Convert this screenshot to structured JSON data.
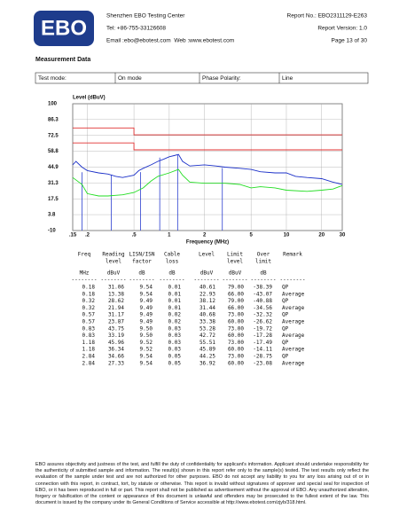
{
  "header": {
    "logo": "EBO",
    "company": "Shenzhen EBO Testing Center",
    "tel": "Tel: +86-755-33126608",
    "contact": "Email :ebo@ebotest.com  Web :www.ebotest.com",
    "report_no": "Report No.: EBO2311129-E263",
    "version": "Report Version: 1.0",
    "page": "Page 13 of 30"
  },
  "section_title": "Measurement Data",
  "mode_table": {
    "cells": [
      "Test mode:",
      "On mode",
      "Phase Polarity:",
      "Line"
    ]
  },
  "chart": {
    "type": "line",
    "ylabel": "Level (dBuV)",
    "xlabel": "Frequency (MHz)",
    "xscale": "log",
    "grid": true,
    "xlim": [
      0.15,
      30
    ],
    "ylim": [
      -10,
      100
    ],
    "xticks": [
      {
        "value": 0.15,
        "label": ".15"
      },
      {
        "value": 0.2,
        "label": ".2"
      },
      {
        "value": 0.5,
        "label": ".5"
      },
      1,
      2,
      5,
      10,
      20,
      30
    ],
    "yticks": [
      -10,
      3.8,
      17.5,
      31.3,
      44.9,
      58.8,
      72.5,
      86.3,
      100
    ],
    "marker_color": "#2b3fd0",
    "series": [
      {
        "color": "#e03030",
        "x": [
          0.15,
          0.5,
          0.5,
          30
        ],
        "values": [
          79,
          79,
          73,
          73
        ]
      },
      {
        "color": "#e03030",
        "x": [
          0.15,
          0.5,
          0.5,
          30
        ],
        "values": [
          66,
          66,
          60,
          60
        ]
      },
      {
        "color": "#1a2fc8",
        "x": [
          0.15,
          0.16,
          0.18,
          0.2,
          0.25,
          0.3,
          0.35,
          0.4,
          0.5,
          0.55,
          0.6,
          0.7,
          0.8,
          0.9,
          1.0,
          1.1,
          1.2,
          1.3,
          1.5,
          2,
          2.5,
          3,
          4,
          5,
          6,
          8,
          10,
          12,
          15,
          20,
          25,
          30
        ],
        "values": [
          47,
          50,
          45,
          42,
          40,
          39,
          37,
          36,
          38,
          42,
          44,
          47,
          50,
          52,
          54,
          55,
          56,
          50,
          46,
          47,
          46,
          45,
          44,
          43,
          41,
          40,
          40,
          37,
          36,
          35,
          32,
          30
        ]
      },
      {
        "color": "#22dd22",
        "x": [
          0.15,
          0.18,
          0.2,
          0.25,
          0.3,
          0.4,
          0.5,
          0.6,
          0.7,
          0.8,
          1.0,
          1.2,
          1.3,
          1.5,
          2,
          3,
          4,
          5,
          6,
          8,
          10,
          15,
          20,
          25,
          30
        ],
        "values": [
          36,
          30,
          22,
          20,
          20,
          21,
          23,
          27,
          33,
          37,
          40,
          43,
          38,
          32,
          31,
          31,
          30,
          27,
          28,
          27,
          25,
          24,
          25,
          26,
          29
        ]
      }
    ]
  },
  "results": {
    "columns": [
      {
        "title": "Freq",
        "unit": "MHz"
      },
      {
        "title": "Reading",
        "title2": "level",
        "unit": "dBuV"
      },
      {
        "title": "LISN/ISN",
        "title2": "factor",
        "unit": "dB"
      },
      {
        "title": "Cable",
        "title2": "loss",
        "unit": "dB"
      },
      {
        "title": "Level",
        "unit": "dBuV"
      },
      {
        "title": "Limit",
        "title2": "level",
        "unit": "dBuV"
      },
      {
        "title": "Over",
        "title2": "limit",
        "unit": "dB"
      },
      {
        "title": "Remark"
      }
    ],
    "rule": "--------",
    "rows": [
      [
        "0.18",
        "31.06",
        "9.54",
        "0.01",
        "40.61",
        "79.00",
        "-38.39",
        "QP"
      ],
      [
        "0.18",
        "13.38",
        "9.54",
        "0.01",
        "22.93",
        "66.00",
        "-43.07",
        "Average"
      ],
      [
        "0.32",
        "28.62",
        "9.49",
        "0.01",
        "38.12",
        "79.00",
        "-40.88",
        "QP"
      ],
      [
        "0.32",
        "21.94",
        "9.49",
        "0.01",
        "31.44",
        "66.00",
        "-34.56",
        "Average"
      ],
      [
        "0.57",
        "31.17",
        "9.49",
        "0.02",
        "40.68",
        "73.00",
        "-32.32",
        "QP"
      ],
      [
        "0.57",
        "23.87",
        "9.49",
        "0.02",
        "33.38",
        "60.00",
        "-26.62",
        "Average"
      ],
      [
        "0.83",
        "43.75",
        "9.50",
        "0.03",
        "53.28",
        "73.00",
        "-19.72",
        "QP"
      ],
      [
        "0.83",
        "33.19",
        "9.50",
        "0.03",
        "42.72",
        "60.00",
        "-17.28",
        "Average"
      ],
      [
        "1.18",
        "45.96",
        "9.52",
        "0.03",
        "55.51",
        "73.00",
        "-17.49",
        "QP"
      ],
      [
        "1.18",
        "36.34",
        "9.52",
        "0.03",
        "45.89",
        "60.00",
        "-14.11",
        "Average"
      ],
      [
        "2.84",
        "34.66",
        "9.54",
        "0.05",
        "44.25",
        "73.00",
        "-28.75",
        "QP"
      ],
      [
        "2.84",
        "27.33",
        "9.54",
        "0.05",
        "36.92",
        "60.00",
        "-23.08",
        "Average"
      ]
    ]
  },
  "footer": "EBO assures objectivity and justness of the test, and fulfill the duty of confidentiality for applicant's information. Applicant should undertake responsibility for the authenticity of submitted sample and information. The result(s) shown in this report refer only to the sample(s) tested. The test results only reflect the evaluation of the sample under test and are not authorized for other purposes. EBO do not accept any liability to you for any loss arising out of or in connection with this report, in contract, tort, by statute or otherwise. This report is invalid without signatures of approver and special seal for inspection of EBO, or it has been reproduced in full or part. This report shall not be published as advertisement without the approval of EBO. Any unauthorized alteration, forgery or falsification of the content or appearance of this document is unlawful and offenders may be prosecuted to the fullest extent of the law. This document is issued by the company under its General Conditions of Service accessible at http://www.ebotest.com/zjyb/318.html."
}
